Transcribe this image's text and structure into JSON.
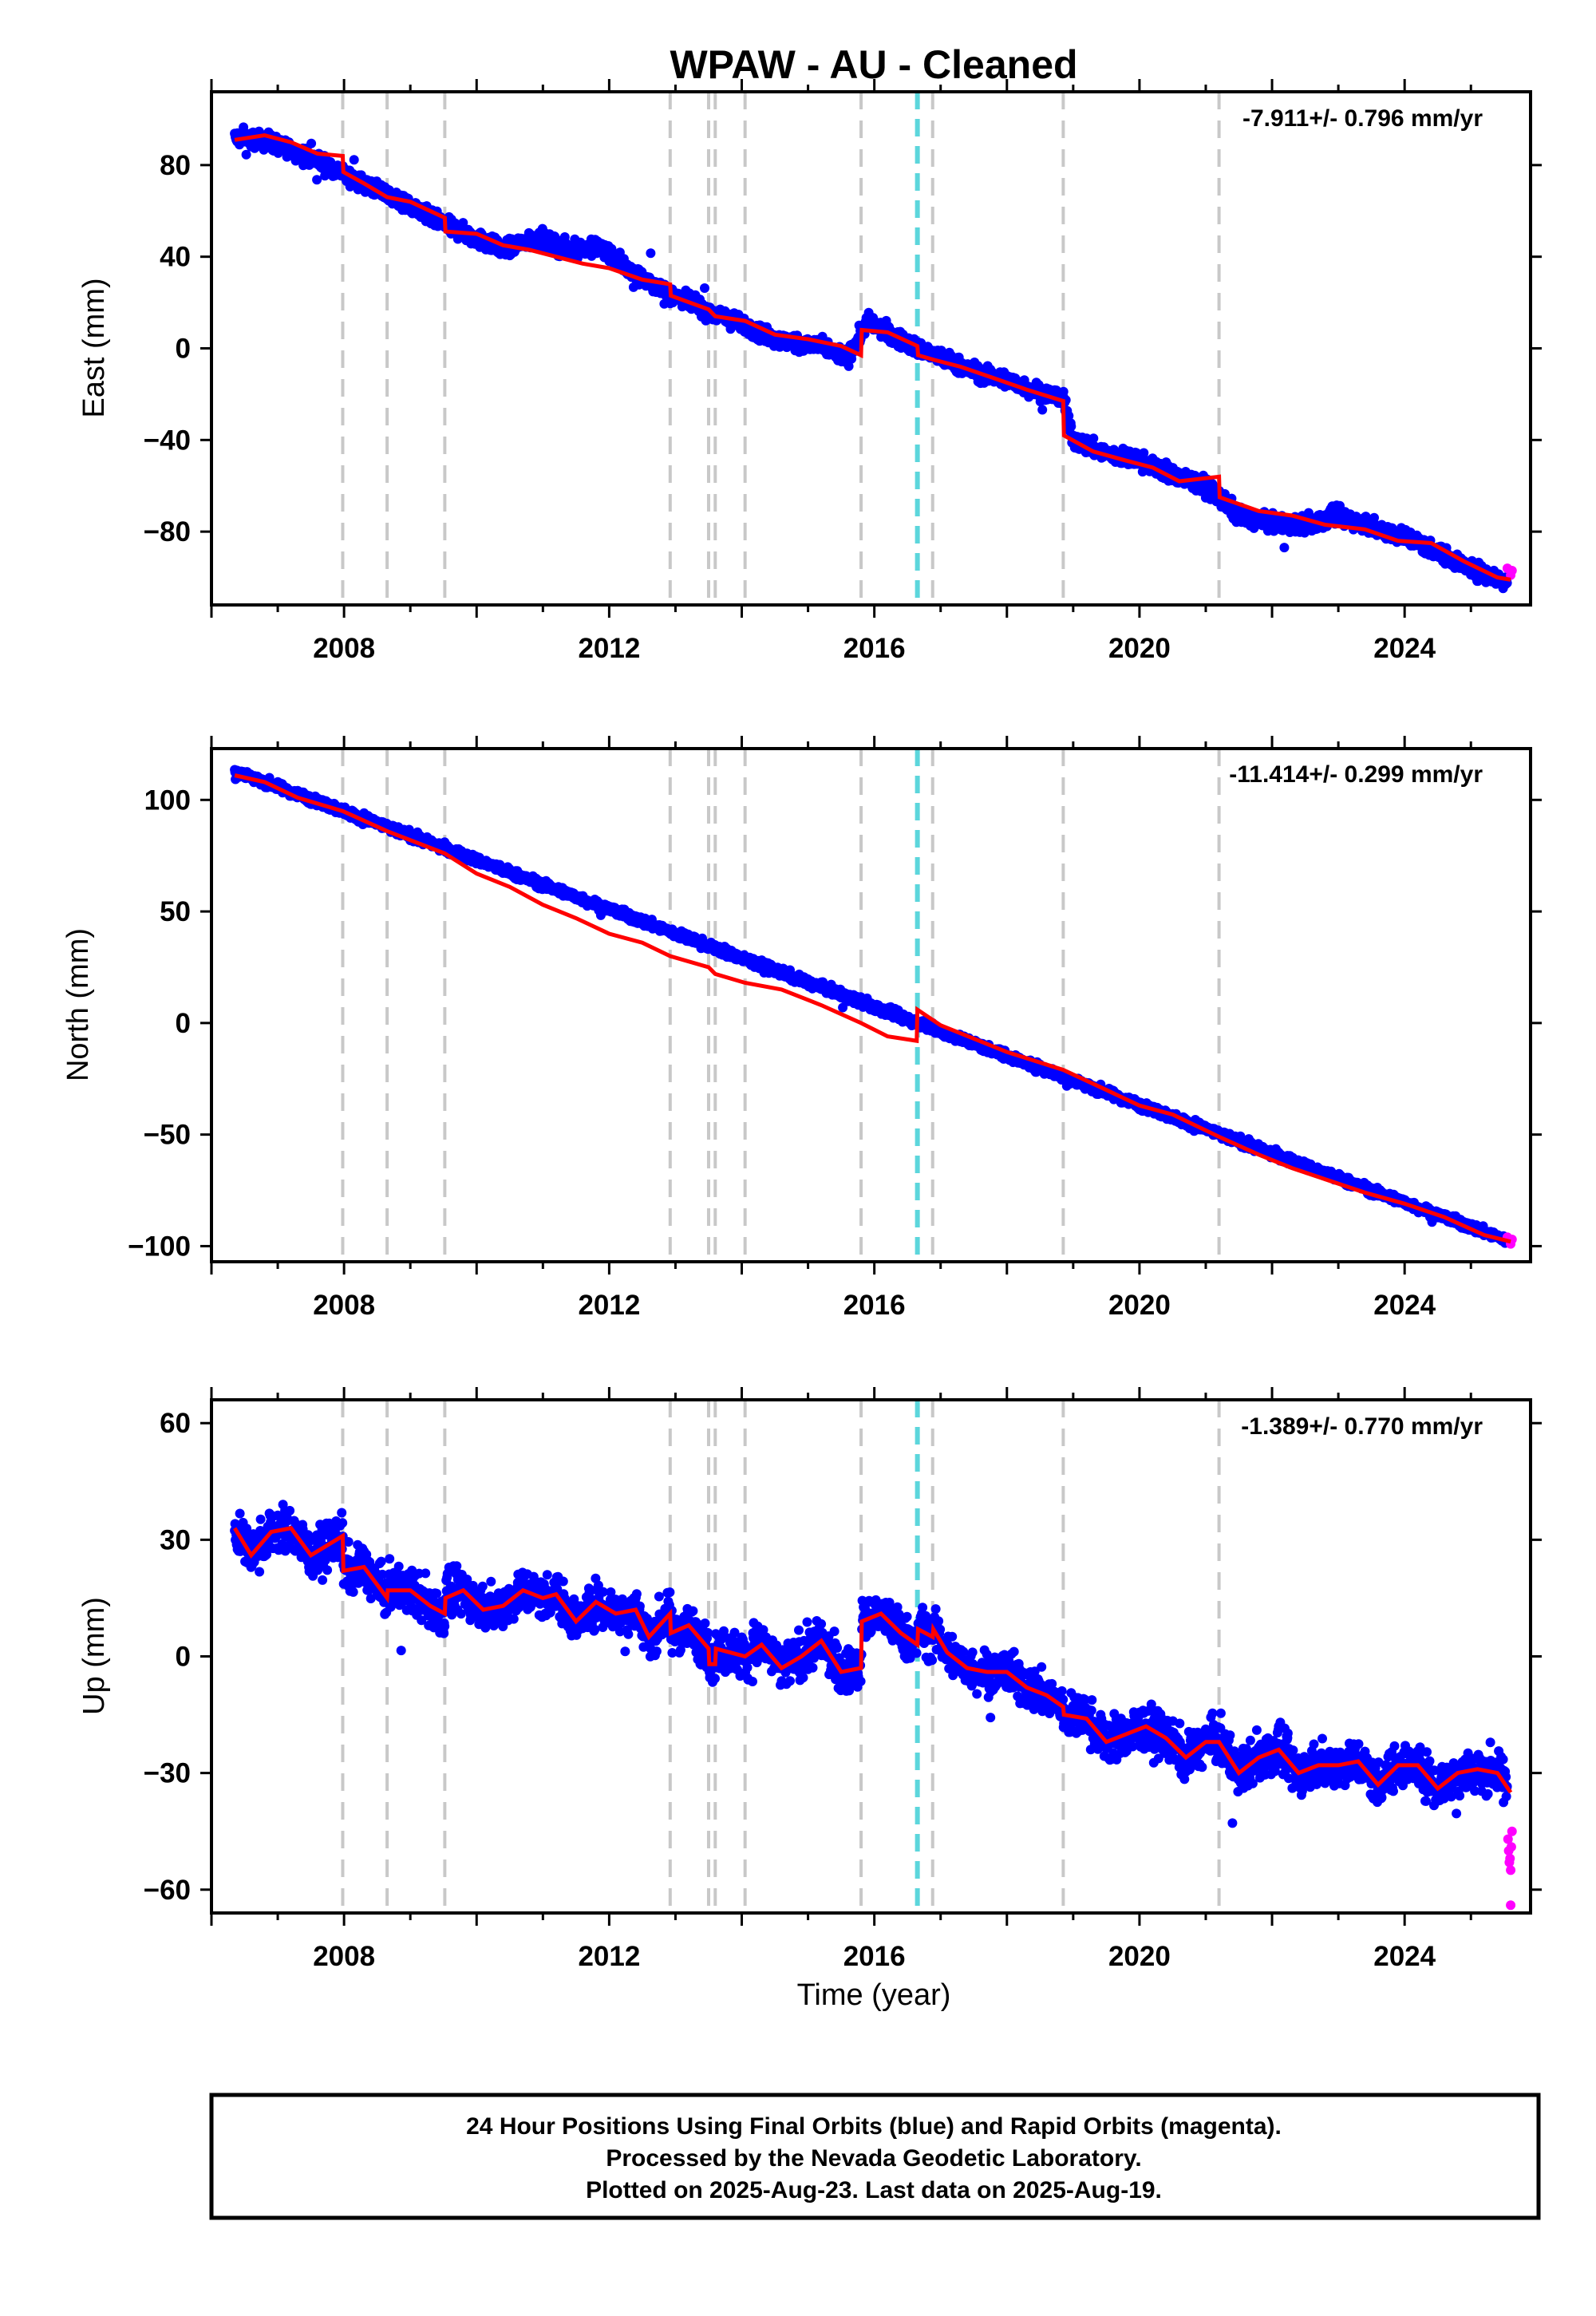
{
  "title": "WPAW  - AU - Cleaned",
  "xlabel": "Time (year)",
  "footer": [
    "24 Hour Positions Using Final Orbits (blue) and Rapid Orbits (magenta).",
    "Processed by the Nevada Geodetic Laboratory.",
    "Plotted on 2025-Aug-23. Last data on 2025-Aug-19."
  ],
  "colors": {
    "final": "#0000ff",
    "rapid": "#ff00ff",
    "model": "#ff0000",
    "event_gray": "#c8c8c8",
    "event_cyan": "#5cd6dc"
  },
  "chart_data": [
    {
      "type": "scatter",
      "component": "East",
      "ylabel": "East (mm)",
      "rate": "-7.911+/- 0.796 mm/yr",
      "xlim": [
        2006.0,
        2025.9
      ],
      "ylim": [
        -112,
        112
      ],
      "yticks": [
        80,
        40,
        0,
        -40,
        -80
      ],
      "ytick_labels": [
        "80",
        "40",
        "0",
        "−40",
        "−80"
      ],
      "xticks": [
        2008,
        2012,
        2016,
        2020,
        2024
      ],
      "xtick_labels": [
        "2008",
        "2012",
        "2016",
        "2020",
        "2024"
      ],
      "event_lines_gray": [
        2007.98,
        2008.65,
        2009.52,
        2012.92,
        2013.5,
        2013.6,
        2014.05,
        2015.8,
        2016.88,
        2018.85,
        2021.2
      ],
      "event_lines_cyan": [
        2016.65
      ],
      "model": [
        [
          2006.35,
          91
        ],
        [
          2006.8,
          93
        ],
        [
          2007.2,
          90
        ],
        [
          2007.6,
          85
        ],
        [
          2007.98,
          84
        ],
        [
          2007.99,
          77
        ],
        [
          2008.3,
          72
        ],
        [
          2008.65,
          66
        ],
        [
          2009.0,
          64
        ],
        [
          2009.52,
          57
        ],
        [
          2009.53,
          51
        ],
        [
          2010.0,
          50
        ],
        [
          2010.4,
          45
        ],
        [
          2010.8,
          43
        ],
        [
          2011.2,
          40
        ],
        [
          2011.6,
          37
        ],
        [
          2012.0,
          35
        ],
        [
          2012.5,
          30
        ],
        [
          2012.92,
          28
        ],
        [
          2012.93,
          23
        ],
        [
          2013.5,
          17
        ],
        [
          2013.6,
          14
        ],
        [
          2014.05,
          12
        ],
        [
          2014.5,
          6
        ],
        [
          2015.0,
          4
        ],
        [
          2015.5,
          1
        ],
        [
          2015.8,
          -3
        ],
        [
          2015.81,
          8
        ],
        [
          2016.2,
          7
        ],
        [
          2016.65,
          1
        ],
        [
          2016.66,
          -3
        ],
        [
          2016.9,
          -5
        ],
        [
          2017.3,
          -8
        ],
        [
          2017.8,
          -13
        ],
        [
          2018.3,
          -18
        ],
        [
          2018.85,
          -23
        ],
        [
          2018.86,
          -38
        ],
        [
          2019.3,
          -45
        ],
        [
          2019.8,
          -49
        ],
        [
          2020.2,
          -52
        ],
        [
          2020.6,
          -58
        ],
        [
          2021.2,
          -56
        ],
        [
          2021.21,
          -65
        ],
        [
          2021.8,
          -71
        ],
        [
          2022.3,
          -73
        ],
        [
          2022.8,
          -77
        ],
        [
          2023.4,
          -79
        ],
        [
          2023.9,
          -84
        ],
        [
          2024.4,
          -85
        ],
        [
          2024.9,
          -93
        ],
        [
          2025.4,
          -100
        ],
        [
          2025.6,
          -101
        ]
      ],
      "trend": [
        [
          2006.35,
          92
        ],
        [
          2006.9,
          90
        ],
        [
          2007.6,
          82
        ],
        [
          2008.3,
          72
        ],
        [
          2009.0,
          62
        ],
        [
          2009.5,
          54
        ],
        [
          2010.0,
          48
        ],
        [
          2010.4,
          43
        ],
        [
          2010.9,
          48
        ],
        [
          2011.4,
          43
        ],
        [
          2011.9,
          44
        ],
        [
          2012.3,
          34
        ],
        [
          2012.9,
          24
        ],
        [
          2013.5,
          16
        ],
        [
          2014.05,
          10
        ],
        [
          2014.6,
          3
        ],
        [
          2015.2,
          1
        ],
        [
          2015.6,
          -4
        ],
        [
          2015.9,
          12
        ],
        [
          2016.3,
          5
        ],
        [
          2016.65,
          0
        ],
        [
          2017.0,
          -4
        ],
        [
          2017.5,
          -10
        ],
        [
          2018.0,
          -14
        ],
        [
          2018.5,
          -19
        ],
        [
          2018.85,
          -22
        ],
        [
          2019.0,
          -40
        ],
        [
          2019.5,
          -46
        ],
        [
          2020.0,
          -49
        ],
        [
          2020.5,
          -55
        ],
        [
          2021.0,
          -60
        ],
        [
          2021.5,
          -73
        ],
        [
          2022.0,
          -77
        ],
        [
          2022.5,
          -77
        ],
        [
          2023.0,
          -73
        ],
        [
          2023.5,
          -78
        ],
        [
          2024.0,
          -82
        ],
        [
          2024.5,
          -89
        ],
        [
          2025.0,
          -96
        ],
        [
          2025.6,
          -103
        ]
      ],
      "noise": 4.5,
      "rapid": [
        [
          2025.55,
          -96
        ],
        [
          2025.6,
          -99
        ],
        [
          2025.62,
          -97
        ]
      ]
    },
    {
      "type": "scatter",
      "component": "North",
      "ylabel": "North (mm)",
      "rate": "-11.414+/- 0.299 mm/yr",
      "xlim": [
        2006.0,
        2025.9
      ],
      "ylim": [
        -107,
        123
      ],
      "yticks": [
        100,
        50,
        0,
        -50,
        -100
      ],
      "ytick_labels": [
        "100",
        "50",
        "0",
        "−50",
        "−100"
      ],
      "xticks": [
        2008,
        2012,
        2016,
        2020,
        2024
      ],
      "xtick_labels": [
        "2008",
        "2012",
        "2016",
        "2020",
        "2024"
      ],
      "event_lines_gray": [
        2007.98,
        2008.65,
        2009.52,
        2012.92,
        2013.5,
        2013.6,
        2014.05,
        2015.8,
        2016.88,
        2018.85,
        2021.2
      ],
      "event_lines_cyan": [
        2016.65
      ],
      "model": [
        [
          2006.35,
          111
        ],
        [
          2006.8,
          108
        ],
        [
          2007.3,
          101
        ],
        [
          2007.98,
          95
        ],
        [
          2008.65,
          86
        ],
        [
          2009.52,
          76
        ],
        [
          2010.0,
          67
        ],
        [
          2010.5,
          61
        ],
        [
          2011.0,
          53
        ],
        [
          2011.5,
          47
        ],
        [
          2012.0,
          40
        ],
        [
          2012.5,
          36
        ],
        [
          2012.92,
          30
        ],
        [
          2013.5,
          25
        ],
        [
          2013.6,
          22
        ],
        [
          2014.05,
          18
        ],
        [
          2014.6,
          15
        ],
        [
          2015.2,
          8
        ],
        [
          2015.8,
          0
        ],
        [
          2016.2,
          -6
        ],
        [
          2016.64,
          -8
        ],
        [
          2016.65,
          6
        ],
        [
          2017.0,
          -1
        ],
        [
          2017.5,
          -7
        ],
        [
          2018.0,
          -13
        ],
        [
          2018.85,
          -21
        ],
        [
          2019.5,
          -30
        ],
        [
          2020.0,
          -37
        ],
        [
          2020.5,
          -41
        ],
        [
          2021.2,
          -51
        ],
        [
          2021.8,
          -59
        ],
        [
          2022.3,
          -65
        ],
        [
          2022.8,
          -70
        ],
        [
          2023.4,
          -76
        ],
        [
          2024.0,
          -81
        ],
        [
          2024.6,
          -87
        ],
        [
          2025.2,
          -95
        ],
        [
          2025.6,
          -98
        ]
      ],
      "trend": [
        [
          2006.35,
          113
        ],
        [
          2025.6,
          -98
        ]
      ],
      "noise": 2.5,
      "rapid": [
        [
          2025.55,
          -96
        ],
        [
          2025.6,
          -99
        ],
        [
          2025.62,
          -97
        ]
      ]
    },
    {
      "type": "scatter",
      "component": "Up",
      "ylabel": "Up (mm)",
      "rate": "-1.389+/- 0.770 mm/yr",
      "xlim": [
        2006.0,
        2025.9
      ],
      "ylim": [
        -66,
        66
      ],
      "yticks": [
        60,
        30,
        0,
        -30,
        -60
      ],
      "ytick_labels": [
        "60",
        "30",
        "0",
        "−30",
        "−60"
      ],
      "xticks": [
        2008,
        2012,
        2016,
        2020,
        2024
      ],
      "xtick_labels": [
        "2008",
        "2012",
        "2016",
        "2020",
        "2024"
      ],
      "event_lines_gray": [
        2007.98,
        2008.65,
        2009.52,
        2012.92,
        2013.5,
        2013.6,
        2014.05,
        2015.8,
        2016.88,
        2018.85,
        2021.2
      ],
      "event_lines_cyan": [
        2016.65
      ],
      "model": [
        [
          2006.35,
          33
        ],
        [
          2006.6,
          26
        ],
        [
          2006.9,
          32
        ],
        [
          2007.2,
          33
        ],
        [
          2007.5,
          26
        ],
        [
          2007.98,
          31
        ],
        [
          2007.99,
          22
        ],
        [
          2008.3,
          23
        ],
        [
          2008.65,
          15
        ],
        [
          2008.66,
          17
        ],
        [
          2009.0,
          17
        ],
        [
          2009.3,
          13
        ],
        [
          2009.52,
          11
        ],
        [
          2009.53,
          15
        ],
        [
          2009.8,
          17
        ],
        [
          2010.1,
          12
        ],
        [
          2010.4,
          13
        ],
        [
          2010.7,
          17
        ],
        [
          2011.0,
          15
        ],
        [
          2011.2,
          16
        ],
        [
          2011.5,
          9
        ],
        [
          2011.8,
          14
        ],
        [
          2012.1,
          11
        ],
        [
          2012.4,
          12
        ],
        [
          2012.6,
          5
        ],
        [
          2012.92,
          11
        ],
        [
          2012.93,
          6
        ],
        [
          2013.2,
          8
        ],
        [
          2013.5,
          2
        ],
        [
          2013.51,
          -2
        ],
        [
          2013.6,
          -2
        ],
        [
          2013.61,
          2
        ],
        [
          2014.05,
          0
        ],
        [
          2014.3,
          3
        ],
        [
          2014.6,
          -3
        ],
        [
          2014.9,
          0
        ],
        [
          2015.2,
          4
        ],
        [
          2015.5,
          -4
        ],
        [
          2015.8,
          -3
        ],
        [
          2015.81,
          9
        ],
        [
          2016.1,
          11
        ],
        [
          2016.4,
          6
        ],
        [
          2016.65,
          3
        ],
        [
          2016.66,
          7
        ],
        [
          2016.88,
          5
        ],
        [
          2016.89,
          7
        ],
        [
          2017.1,
          1
        ],
        [
          2017.4,
          -3
        ],
        [
          2017.7,
          -4
        ],
        [
          2018.0,
          -4
        ],
        [
          2018.3,
          -8
        ],
        [
          2018.6,
          -10
        ],
        [
          2018.85,
          -13
        ],
        [
          2018.86,
          -15
        ],
        [
          2019.2,
          -16
        ],
        [
          2019.5,
          -22
        ],
        [
          2019.8,
          -20
        ],
        [
          2020.1,
          -18
        ],
        [
          2020.4,
          -21
        ],
        [
          2020.7,
          -26
        ],
        [
          2021.0,
          -22
        ],
        [
          2021.2,
          -22
        ],
        [
          2021.5,
          -30
        ],
        [
          2021.8,
          -26
        ],
        [
          2022.1,
          -24
        ],
        [
          2022.4,
          -30
        ],
        [
          2022.7,
          -28
        ],
        [
          2023.0,
          -28
        ],
        [
          2023.3,
          -27
        ],
        [
          2023.6,
          -33
        ],
        [
          2023.9,
          -28
        ],
        [
          2024.2,
          -28
        ],
        [
          2024.5,
          -34
        ],
        [
          2024.8,
          -30
        ],
        [
          2025.1,
          -29
        ],
        [
          2025.4,
          -30
        ],
        [
          2025.6,
          -35
        ]
      ],
      "noise": 7,
      "rapid": [
        [
          2025.56,
          -47
        ],
        [
          2025.57,
          -50
        ],
        [
          2025.58,
          -53
        ],
        [
          2025.6,
          -55
        ],
        [
          2025.61,
          -49
        ],
        [
          2025.62,
          -45
        ],
        [
          2025.59,
          -52
        ],
        [
          2025.6,
          -64
        ]
      ]
    }
  ]
}
